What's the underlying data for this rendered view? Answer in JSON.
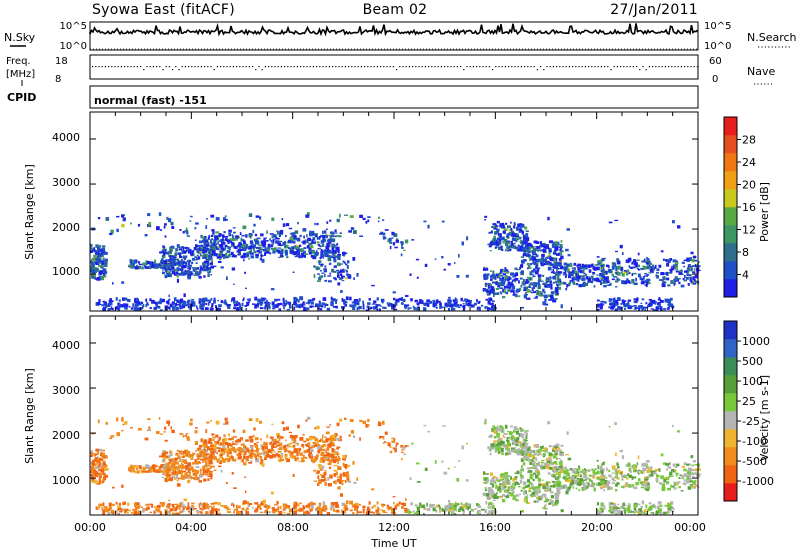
{
  "header": {
    "station": "Syowa East (fitACF)",
    "beam": "Beam 02",
    "date": "27/Jan/2011"
  },
  "nsky_panel": {
    "left_label": "N.Sky",
    "right_label": "N.Search",
    "left_ticks": [
      "10^5",
      "10^0"
    ],
    "right_ticks": [
      "10^5",
      "10^0"
    ]
  },
  "freq_panel": {
    "left_label_1": "Freq.",
    "left_label_2": "[MHz]",
    "left_ticks": [
      "18",
      "8"
    ],
    "right_label": "Nave",
    "right_ticks": [
      "60",
      "0"
    ]
  },
  "cpid_panel": {
    "label": "CPID",
    "value": "normal (fast) -151"
  },
  "chart_data": [
    {
      "type": "heatmap",
      "title": "",
      "ylabel": "Slant Range [km]",
      "ylim": [
        180,
        4600
      ],
      "yticks": [
        "1000",
        "2000",
        "3000",
        "4000"
      ],
      "colorbar": {
        "label": "Power [dB]",
        "ticks": [
          "4",
          "8",
          "12",
          "16",
          "20",
          "24",
          "28"
        ],
        "colors": [
          "#1e1ee6",
          "#1e50c8",
          "#2d6e8c",
          "#3c9664",
          "#58a846",
          "#c8c81e",
          "#f0a014",
          "#f07814",
          "#e6501e",
          "#e61e1e"
        ]
      }
    },
    {
      "type": "heatmap",
      "title": "",
      "ylabel": "Slant Range [km]",
      "ylim": [
        180,
        4600
      ],
      "yticks": [
        "1000",
        "2000",
        "3000",
        "4000"
      ],
      "colorbar": {
        "label": "Velocity [m s-1]",
        "ticks": [
          "1000",
          "500",
          "100",
          "25",
          "-25",
          "-100",
          "-500",
          "-1000"
        ],
        "colors": [
          "#1e32c8",
          "#3264c8",
          "#3c8c5a",
          "#58a03c",
          "#78c83c",
          "#b4b4b4",
          "#f0b432",
          "#f08c1e",
          "#f06414",
          "#e61e1e"
        ]
      }
    }
  ],
  "time_axis": {
    "xlabel": "Time UT",
    "ticks": [
      "00:00",
      "04:00",
      "08:00",
      "12:00",
      "16:00",
      "20:00",
      "00:00"
    ]
  }
}
